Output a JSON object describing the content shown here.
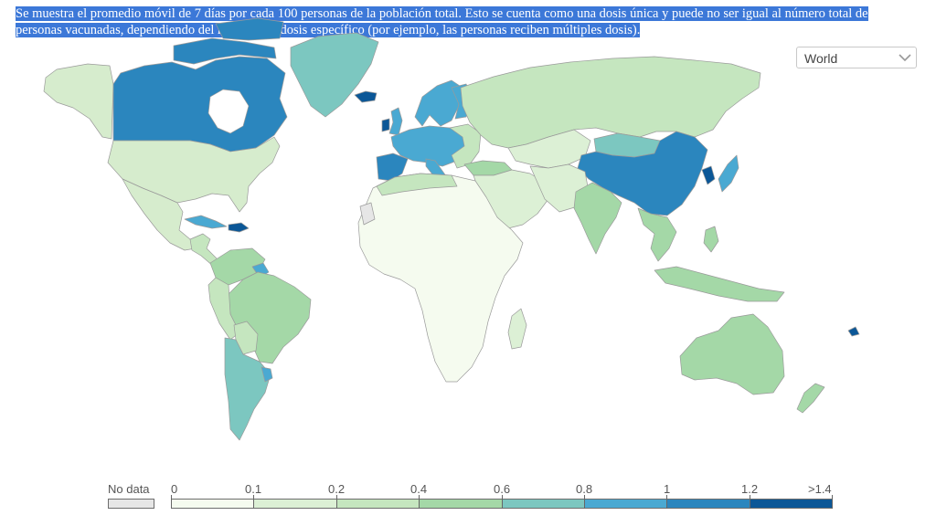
{
  "description": "Se muestra el promedio móvil de 7 días por cada 100 personas de la población total. Esto se cuenta como una dosis única y puede no ser igual al número total de personas vacunadas, dependiendo del régimen de dosis específico (por ejemplo, las personas reciben múltiples dosis).",
  "region_select": {
    "value": "World",
    "icon": "chevron-down-icon"
  },
  "legend": {
    "no_data_label": "No data",
    "no_data_color": "#e6e6e6",
    "tick_labels": [
      "0",
      "0.1",
      "0.2",
      "0.4",
      "0.6",
      "0.8",
      "1",
      "1.2",
      ">1.4"
    ],
    "bin_colors": [
      "#f5fbef",
      "#dcf0d5",
      "#c5e6bf",
      "#a4d8a7",
      "#7cc7c0",
      "#4aa9d2",
      "#2b86be",
      "#0b5797"
    ]
  }
}
